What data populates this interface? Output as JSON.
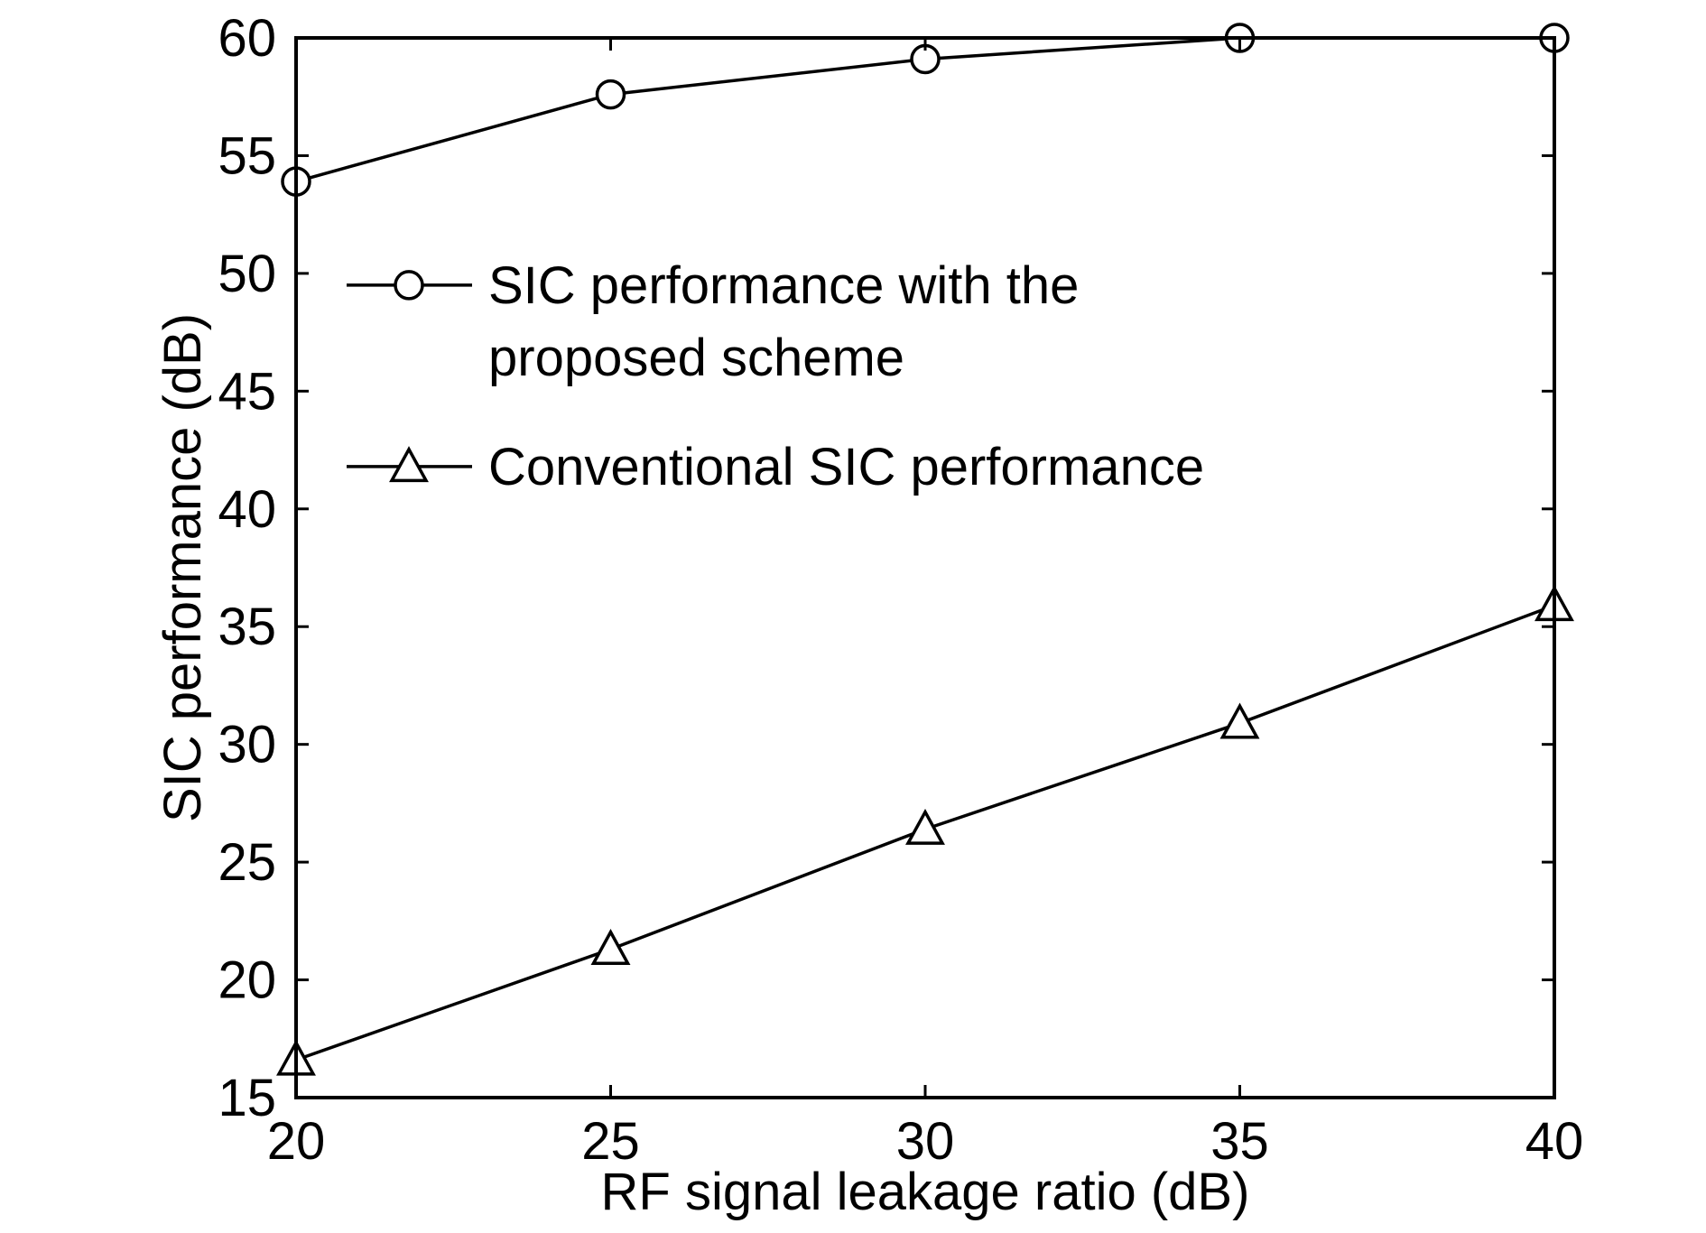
{
  "chart_data": {
    "type": "line",
    "title": "",
    "xlabel": "RF signal leakage ratio (dB)",
    "ylabel": "SIC performance (dB)",
    "xlim": [
      20,
      40
    ],
    "ylim": [
      15,
      60
    ],
    "xticks": [
      20,
      25,
      30,
      35,
      40
    ],
    "yticks": [
      15,
      20,
      25,
      30,
      35,
      40,
      45,
      50,
      55,
      60
    ],
    "grid": false,
    "legend_position": "upper-left, inside plot",
    "x": [
      20,
      25,
      30,
      35,
      40
    ],
    "series": [
      {
        "name_lines": [
          "SIC performance with the",
          "proposed scheme"
        ],
        "marker": "circle",
        "values": [
          53.9,
          57.6,
          59.1,
          60,
          60
        ]
      },
      {
        "name_lines": [
          "Conventional SIC performance"
        ],
        "marker": "triangle",
        "values": [
          16.6,
          21.3,
          26.4,
          30.9,
          35.9
        ]
      }
    ],
    "colors": {
      "line": "#000000",
      "background": "#ffffff"
    }
  }
}
